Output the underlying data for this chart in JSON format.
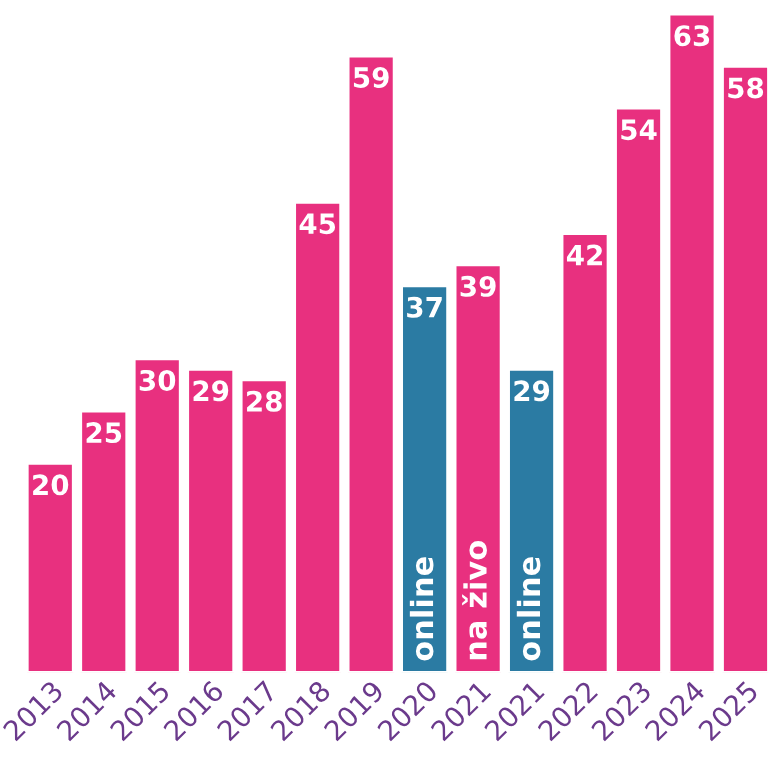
{
  "chart_data": {
    "type": "bar",
    "categories": [
      "2013",
      "2014",
      "2015",
      "2016",
      "2017",
      "2018",
      "2019",
      "2020",
      "2021",
      "2021",
      "2022",
      "2023",
      "2024",
      "2025"
    ],
    "values": [
      20,
      25,
      30,
      29,
      28,
      45,
      59,
      37,
      39,
      29,
      42,
      54,
      63,
      58
    ],
    "colors": [
      "#e8307f",
      "#e8307f",
      "#e8307f",
      "#e8307f",
      "#e8307f",
      "#e8307f",
      "#e8307f",
      "#2b7ba3",
      "#e8307f",
      "#2b7ba3",
      "#e8307f",
      "#e8307f",
      "#e8307f",
      "#e8307f"
    ],
    "data_labels": true,
    "annotations": [
      {
        "text": "online",
        "x": "2020",
        "y": 0
      },
      {
        "text": "na živo",
        "x": "2021",
        "y": 0
      },
      {
        "text": "online",
        "x": "2021",
        "y": 0
      }
    ]
  }
}
